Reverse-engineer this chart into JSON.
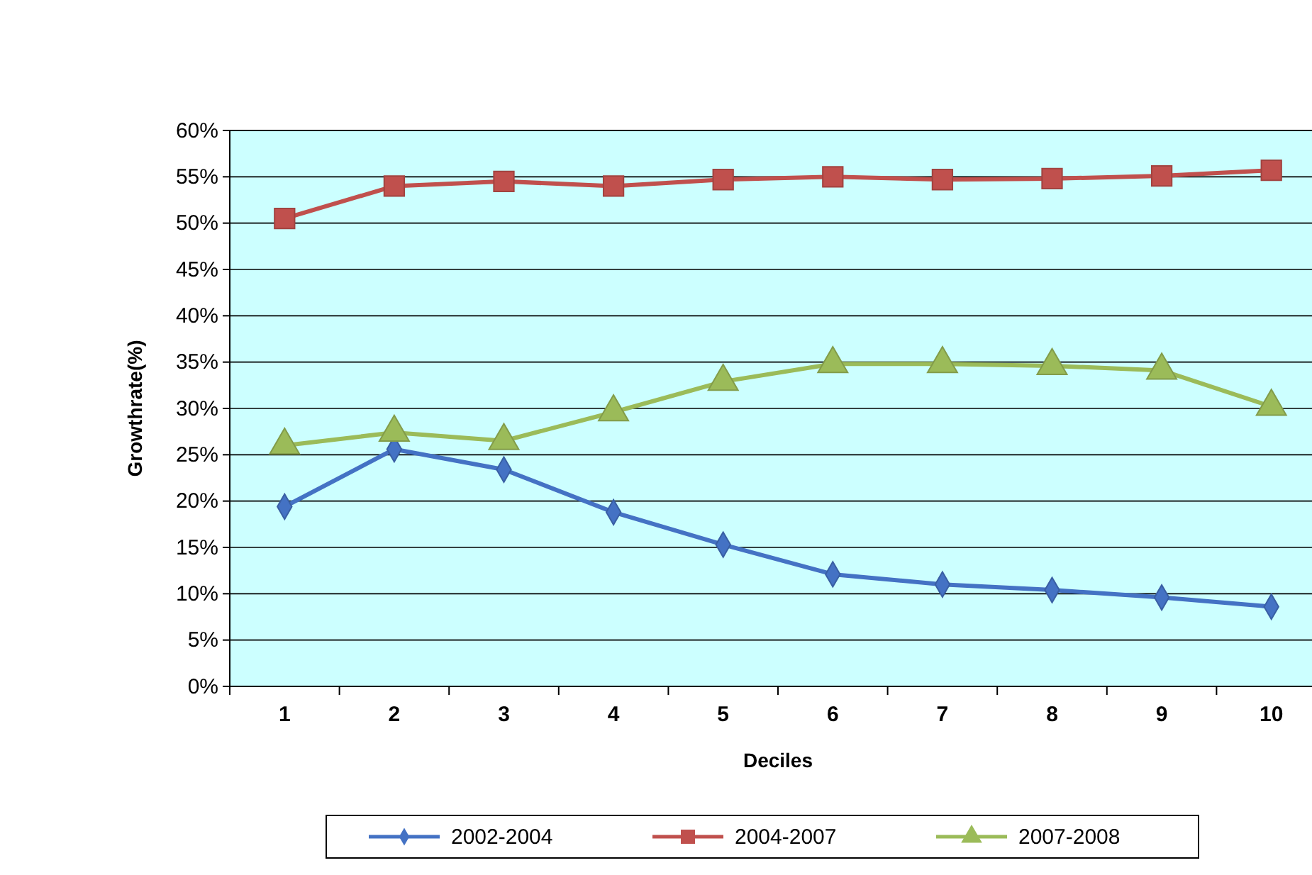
{
  "chart_data": {
    "type": "line",
    "xlabel": "Deciles",
    "ylabel": "Growthrate(%)",
    "categories": [
      "1",
      "2",
      "3",
      "4",
      "5",
      "6",
      "7",
      "8",
      "9",
      "10"
    ],
    "series": [
      {
        "name": "2002-2004",
        "color": "#4472c4",
        "marker": "diamond",
        "values": [
          19.4,
          25.6,
          23.4,
          18.8,
          15.3,
          12.1,
          11.0,
          10.4,
          9.6,
          8.6
        ]
      },
      {
        "name": "2004-2007",
        "color": "#c0504d",
        "marker": "square",
        "values": [
          50.5,
          54.0,
          54.5,
          54.0,
          54.7,
          55.0,
          54.7,
          54.8,
          55.1,
          55.7
        ]
      },
      {
        "name": "2007-2008",
        "color": "#9bbb59",
        "marker": "triangle",
        "values": [
          26.0,
          27.4,
          26.5,
          29.6,
          32.9,
          34.8,
          34.8,
          34.6,
          34.1,
          30.2
        ]
      }
    ],
    "ylim": [
      0,
      60
    ],
    "yticks": [
      {
        "value": 0,
        "label": "0%"
      },
      {
        "value": 5,
        "label": "5%"
      },
      {
        "value": 10,
        "label": "10%"
      },
      {
        "value": 15,
        "label": "15%"
      },
      {
        "value": 20,
        "label": "20%"
      },
      {
        "value": 25,
        "label": "25%"
      },
      {
        "value": 30,
        "label": "30%"
      },
      {
        "value": 35,
        "label": "35%"
      },
      {
        "value": 40,
        "label": "40%"
      },
      {
        "value": 45,
        "label": "45%"
      },
      {
        "value": 50,
        "label": "50%"
      },
      {
        "value": 55,
        "label": "55%"
      },
      {
        "value": 60,
        "label": "60%"
      }
    ],
    "grid": "y",
    "legend": "bottom",
    "line_style": "solid"
  }
}
